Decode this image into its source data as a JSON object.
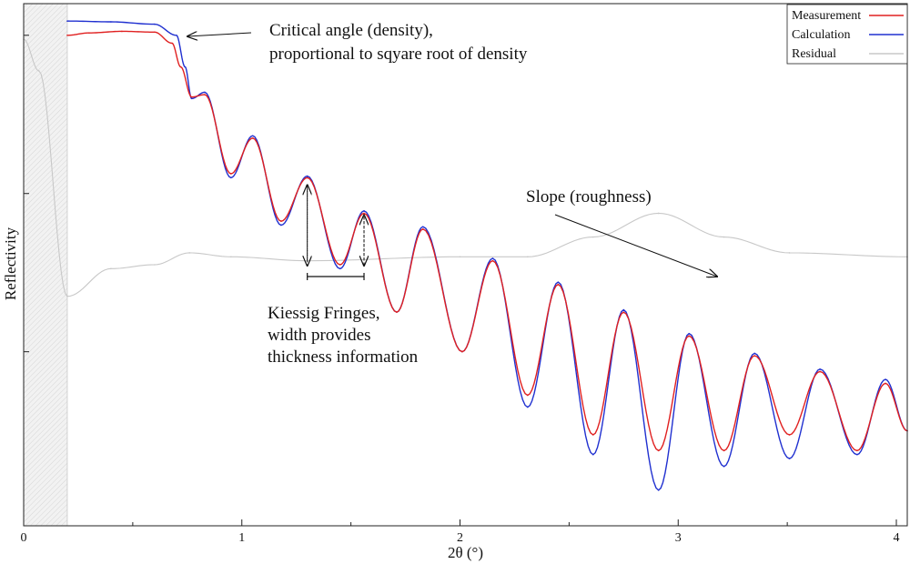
{
  "chart_data": {
    "type": "line",
    "title": "",
    "xlabel": "2θ (°)",
    "ylabel": "Reflectivity",
    "xlim": [
      0,
      4.05
    ],
    "ylim": [
      -6.2,
      0.4
    ],
    "y_scale": "log (arbitrary units, decades)",
    "x_ticks": [
      0,
      1,
      2,
      3,
      4
    ],
    "x_tick_labels": [
      "0",
      "1",
      "2",
      "3",
      "4"
    ],
    "y_ticks": [
      -4,
      -2,
      0
    ],
    "grid": false,
    "shaded_region": {
      "x": [
        0,
        0.2
      ]
    },
    "legend": {
      "position": "top-right",
      "entries": [
        {
          "name": "Measurement",
          "color": "#e02020"
        },
        {
          "name": "Calculation",
          "color": "#2030d0"
        },
        {
          "name": "Residual",
          "color": "#c8c8c8"
        }
      ]
    },
    "series": [
      {
        "name": "Measurement",
        "color": "#e02020",
        "x": [
          0.2,
          0.3,
          0.45,
          0.6,
          0.68,
          0.72,
          0.77,
          0.83,
          0.95,
          1.05,
          1.18,
          1.3,
          1.45,
          1.56,
          1.71,
          1.83,
          2.01,
          2.15,
          2.31,
          2.45,
          2.61,
          2.75,
          2.91,
          3.05,
          3.21,
          3.35,
          3.51,
          3.65,
          3.82,
          3.95,
          4.05
        ],
        "y": [
          0.0,
          0.03,
          0.05,
          0.04,
          -0.1,
          -0.4,
          -0.78,
          -0.75,
          -1.75,
          -1.3,
          -2.35,
          -1.8,
          -2.9,
          -2.25,
          -3.5,
          -2.45,
          -4.0,
          -2.85,
          -4.55,
          -3.15,
          -5.05,
          -3.5,
          -5.25,
          -3.8,
          -5.25,
          -4.05,
          -5.05,
          -4.25,
          -5.25,
          -4.4,
          -5.0
        ]
      },
      {
        "name": "Calculation",
        "color": "#2030d0",
        "x": [
          0.2,
          0.4,
          0.6,
          0.7,
          0.74,
          0.77,
          0.83,
          0.95,
          1.05,
          1.18,
          1.3,
          1.45,
          1.56,
          1.71,
          1.83,
          2.01,
          2.15,
          2.31,
          2.45,
          2.61,
          2.75,
          2.91,
          3.05,
          3.21,
          3.35,
          3.51,
          3.65,
          3.82,
          3.95,
          4.05
        ],
        "y": [
          0.18,
          0.17,
          0.14,
          0.0,
          -0.4,
          -0.8,
          -0.72,
          -1.8,
          -1.27,
          -2.4,
          -1.78,
          -2.95,
          -2.22,
          -3.5,
          -2.42,
          -4.0,
          -2.82,
          -4.7,
          -3.12,
          -5.3,
          -3.47,
          -5.75,
          -3.77,
          -5.45,
          -4.02,
          -5.35,
          -4.22,
          -5.3,
          -4.35,
          -5.0
        ]
      },
      {
        "name": "Residual",
        "color": "#c8c8c8",
        "x": [
          0.0,
          0.07,
          0.2,
          0.4,
          0.6,
          0.76,
          0.95,
          1.3,
          2.0,
          2.31,
          2.61,
          2.91,
          3.21,
          3.51,
          4.05
        ],
        "y": [
          -0.05,
          -0.45,
          -3.3,
          -2.95,
          -2.9,
          -2.75,
          -2.8,
          -2.85,
          -2.8,
          -2.8,
          -2.55,
          -2.25,
          -2.55,
          -2.75,
          -2.8
        ]
      }
    ],
    "annotations": [
      {
        "text_lines": [
          "Critical angle (density),",
          "proportional to sqyare root of density"
        ],
        "points_to_x": 0.75
      },
      {
        "text_lines": [
          "Slope (roughness)"
        ],
        "points_to_x": 3.2
      },
      {
        "text_lines": [
          "Kiessig Fringes,",
          "width provides",
          "thickness information"
        ],
        "fringe_peaks_x": [
          1.3,
          1.56
        ]
      }
    ]
  }
}
